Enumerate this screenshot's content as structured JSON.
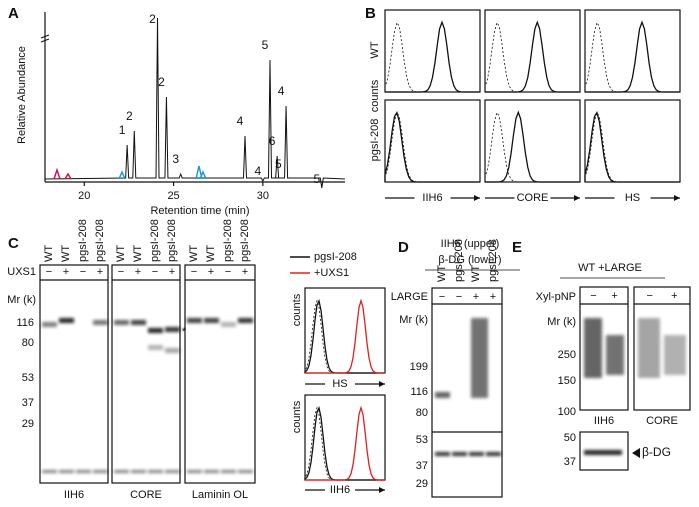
{
  "panel_labels": [
    "A",
    "B",
    "C",
    "D",
    "E"
  ],
  "panel_a": {
    "y_label": "Relative Abundance",
    "x_label": "Retention time (min)",
    "xlim": [
      17.8,
      34.6
    ],
    "xticks": [
      20,
      25,
      30
    ],
    "peaks": [
      {
        "label": "1",
        "rt": 22.4
      },
      {
        "label": "2",
        "rt": 22.8
      },
      {
        "label": "2",
        "rt": 24.1
      },
      {
        "label": "2",
        "rt": 24.6
      },
      {
        "label": "3",
        "rt": 25.4
      },
      {
        "label": "4",
        "rt": 29.0
      },
      {
        "label": "4",
        "rt": 30.0
      },
      {
        "label": "5",
        "rt": 30.4
      },
      {
        "label": "6",
        "rt": 30.8
      },
      {
        "label": "5",
        "rt": 30.7
      },
      {
        "label": "4",
        "rt": 31.3
      },
      {
        "label": "5",
        "rt": 33.3
      }
    ]
  },
  "panel_b": {
    "rows": [
      "WT",
      "pgsI-208"
    ],
    "y_label": "counts",
    "columns": [
      "IIH6",
      "CORE",
      "HS"
    ]
  },
  "panel_c": {
    "lanes": [
      "WT",
      "WT",
      "pgsI-208",
      "pgsI-208"
    ],
    "treatment": "UXS1",
    "signs": [
      "−",
      "+",
      "−",
      "+"
    ],
    "mr_label": "Mr (k)",
    "markers": [
      116,
      80,
      53,
      37,
      29
    ],
    "blots": [
      "IIH6",
      "CORE",
      "Laminin OL"
    ],
    "asterisk": "*",
    "legend": [
      "pgsI-208",
      "+UXS1"
    ],
    "flow_y_label": "counts",
    "flow": [
      "HS",
      "IIH6"
    ]
  },
  "panel_d": {
    "title": [
      "IIH6 (upper)",
      "β-DG (lower)"
    ],
    "lanes": [
      "WT",
      "pgsI-208",
      "WT",
      "pgsI-208"
    ],
    "treatment": "LARGE",
    "signs": [
      "−",
      "−",
      "+",
      "+"
    ],
    "mr_label": "Mr (k)",
    "markers": [
      199,
      116,
      80,
      53,
      37,
      29
    ]
  },
  "panel_e": {
    "title": "WT +LARGE",
    "treatment": "Xyl-pNP",
    "signs": [
      "−",
      "+",
      "−",
      "+"
    ],
    "mr_label": "Mr (k)",
    "markers": [
      250,
      150,
      100
    ],
    "blots": [
      "IIH6",
      "CORE"
    ],
    "lower_markers": [
      50,
      37
    ],
    "lower_label": "β-DG"
  }
}
